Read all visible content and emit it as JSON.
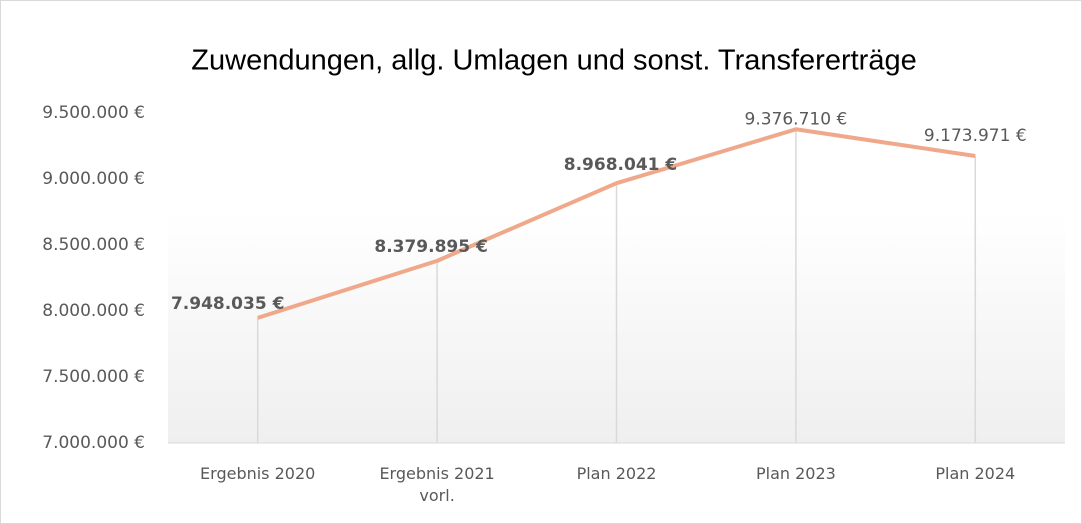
{
  "chart_data": {
    "type": "line",
    "title": "Zuwendungen, allg. Umlagen und sonst. Transfererträge",
    "categories": [
      "Ergebnis 2020",
      "Ergebnis 2021 vorl.",
      "Plan 2022",
      "Plan 2023",
      "Plan 2024"
    ],
    "series": [
      {
        "name": "Zuwendungen, allg. Umlagen und sonst. Transfererträge",
        "color": "#f0a88a",
        "values": [
          7948035,
          8379895,
          8968041,
          9376710,
          9173971
        ],
        "value_labels": [
          "7.948.035 €",
          "8.379.895 €",
          "8.968.041 €",
          "9.376.710 €",
          "9.173.971 €"
        ]
      }
    ],
    "ylim": [
      7000000,
      9500000
    ],
    "yticks": [
      {
        "value": 7000000,
        "label": "7.000.000 €"
      },
      {
        "value": 7500000,
        "label": "7.500.000 €"
      },
      {
        "value": 8000000,
        "label": "8.000.000 €"
      },
      {
        "value": 8500000,
        "label": "8.500.000 €"
      },
      {
        "value": 9000000,
        "label": "9.000.000 €"
      },
      {
        "value": 9500000,
        "label": "9.500.000 €"
      }
    ]
  }
}
